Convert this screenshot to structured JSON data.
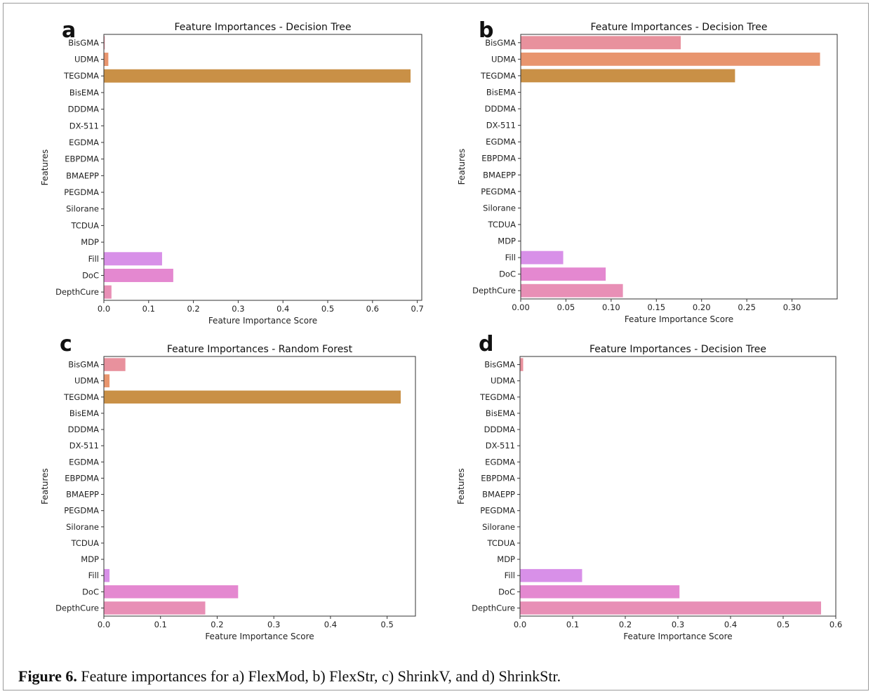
{
  "caption": {
    "label": "Figure 6.",
    "text": " Feature importances for a) FlexMod, b) FlexStr, c) ShrinkV, and d) ShrinkStr."
  },
  "chart_data": [
    {
      "panel": "a",
      "type": "bar",
      "orientation": "horizontal",
      "title": "Feature Importances - Decision Tree",
      "xlabel": "Feature Importance Score",
      "ylabel": "Features",
      "xlim": [
        0,
        0.71
      ],
      "xticks": [
        "0.0",
        "0.1",
        "0.2",
        "0.3",
        "0.4",
        "0.5",
        "0.6",
        "0.7"
      ],
      "categories": [
        "BisGMA",
        "UDMA",
        "TEGDMA",
        "BisEMA",
        "DDDMA",
        "DX-511",
        "EGDMA",
        "EBPDMA",
        "BMAEPP",
        "PEGDMA",
        "Silorane",
        "TCDUA",
        "MDP",
        "Fill",
        "DoC",
        "DepthCure"
      ],
      "values": [
        0.002,
        0.01,
        0.685,
        0,
        0,
        0,
        0,
        0,
        0,
        0,
        0,
        0,
        0,
        0.13,
        0.155,
        0.017
      ],
      "colors": [
        "#e8919d",
        "#e8956e",
        "#c99046",
        "#c99f4a",
        "#b6a64a",
        "#9cae4a",
        "#6ab55c",
        "#4db887",
        "#4bb7a6",
        "#4cb3bf",
        "#55acd6",
        "#7ca2e8",
        "#b196ee",
        "#d890e8",
        "#e488d0",
        "#e88fb6"
      ]
    },
    {
      "panel": "b",
      "type": "bar",
      "orientation": "horizontal",
      "title": "Feature Importances - Decision Tree",
      "xlabel": "Feature Importance Score",
      "ylabel": "Features",
      "xlim": [
        0,
        0.35
      ],
      "xticks": [
        "0.00",
        "0.05",
        "0.10",
        "0.15",
        "0.20",
        "0.25",
        "0.30"
      ],
      "categories": [
        "BisGMA",
        "UDMA",
        "TEGDMA",
        "BisEMA",
        "DDDMA",
        "DX-511",
        "EGDMA",
        "EBPDMA",
        "BMAEPP",
        "PEGDMA",
        "Silorane",
        "TCDUA",
        "MDP",
        "Fill",
        "DoC",
        "DepthCure"
      ],
      "values": [
        0.177,
        0.331,
        0.237,
        0,
        0,
        0,
        0,
        0,
        0,
        0,
        0,
        0,
        0,
        0.047,
        0.094,
        0.113
      ],
      "colors": [
        "#e8919d",
        "#e8956e",
        "#c99046",
        "#c99f4a",
        "#b6a64a",
        "#9cae4a",
        "#6ab55c",
        "#4db887",
        "#4bb7a6",
        "#4cb3bf",
        "#55acd6",
        "#7ca2e8",
        "#b196ee",
        "#d890e8",
        "#e488d0",
        "#e88fb6"
      ]
    },
    {
      "panel": "c",
      "type": "bar",
      "orientation": "horizontal",
      "title": "Feature Importances - Random Forest",
      "xlabel": "Feature Importance Score",
      "ylabel": "Features",
      "xlim": [
        0,
        0.55
      ],
      "xticks": [
        "0.0",
        "0.1",
        "0.2",
        "0.3",
        "0.4",
        "0.5"
      ],
      "categories": [
        "BisGMA",
        "UDMA",
        "TEGDMA",
        "BisEMA",
        "DDDMA",
        "DX-511",
        "EGDMA",
        "EBPDMA",
        "BMAEPP",
        "PEGDMA",
        "Silorane",
        "TCDUA",
        "MDP",
        "Fill",
        "DoC",
        "DepthCure"
      ],
      "values": [
        0.038,
        0.01,
        0.524,
        0,
        0,
        0,
        0,
        0,
        0,
        0,
        0,
        0,
        0,
        0.01,
        0.237,
        0.179
      ],
      "colors": [
        "#e8919d",
        "#e8956e",
        "#c99046",
        "#c99f4a",
        "#b6a64a",
        "#9cae4a",
        "#6ab55c",
        "#4db887",
        "#4bb7a6",
        "#4cb3bf",
        "#55acd6",
        "#7ca2e8",
        "#b196ee",
        "#d890e8",
        "#e488d0",
        "#e88fb6"
      ]
    },
    {
      "panel": "d",
      "type": "bar",
      "orientation": "horizontal",
      "title": "Feature Importances - Decision Tree",
      "xlabel": "Feature Importance Score",
      "ylabel": "Features",
      "xlim": [
        0,
        0.6
      ],
      "xticks": [
        "0.0",
        "0.1",
        "0.2",
        "0.3",
        "0.4",
        "0.5",
        "0.6"
      ],
      "categories": [
        "BisGMA",
        "UDMA",
        "TEGDMA",
        "BisEMA",
        "DDDMA",
        "DX-511",
        "EGDMA",
        "EBPDMA",
        "BMAEPP",
        "PEGDMA",
        "Silorane",
        "TCDUA",
        "MDP",
        "Fill",
        "DoC",
        "DepthCure"
      ],
      "values": [
        0.006,
        0,
        0,
        0,
        0,
        0,
        0,
        0,
        0,
        0,
        0,
        0,
        0,
        0.118,
        0.303,
        0.572
      ],
      "colors": [
        "#e8919d",
        "#e8956e",
        "#c99046",
        "#c99f4a",
        "#b6a64a",
        "#9cae4a",
        "#6ab55c",
        "#4db887",
        "#4bb7a6",
        "#4cb3bf",
        "#55acd6",
        "#7ca2e8",
        "#b196ee",
        "#d890e8",
        "#e488d0",
        "#e88fb6"
      ]
    }
  ]
}
